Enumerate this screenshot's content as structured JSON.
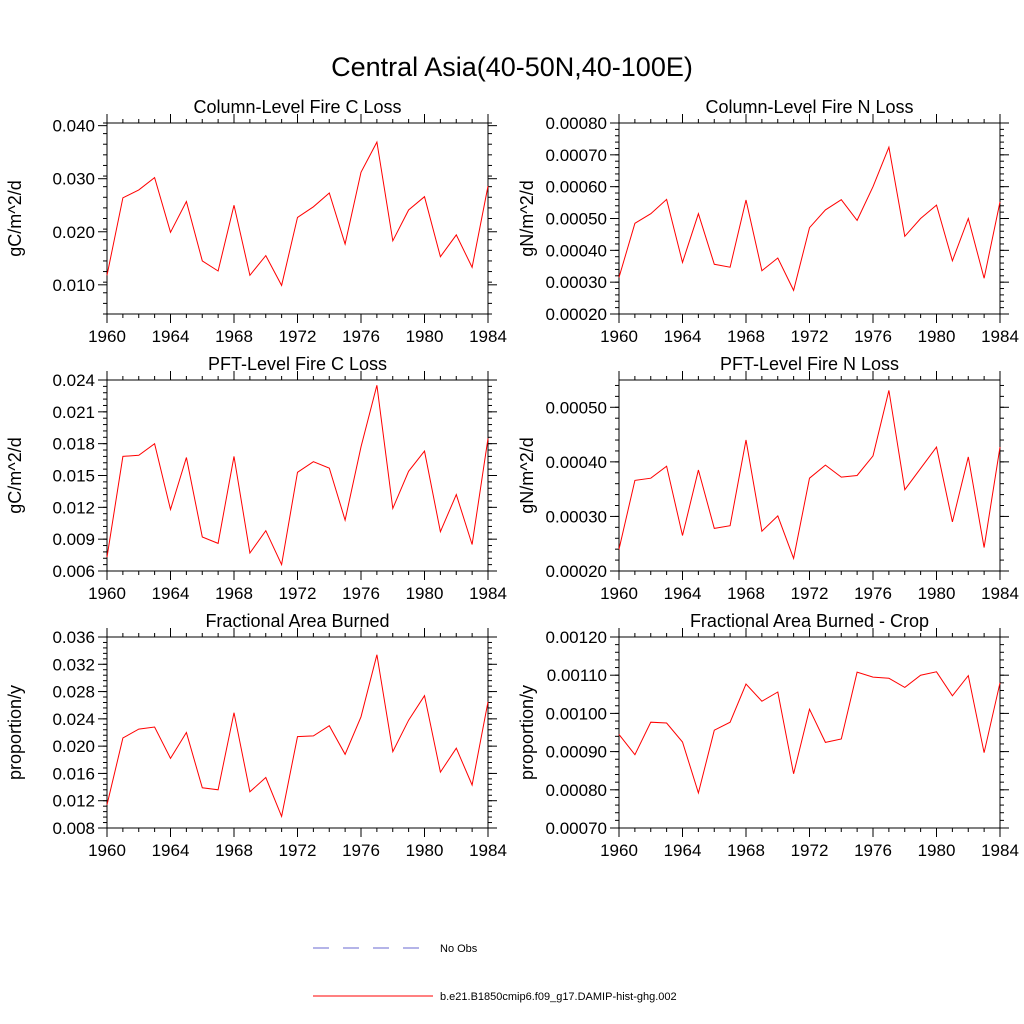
{
  "figure_title": "Central Asia(40-50N,40-100E)",
  "colors": {
    "model_line": "#ff0000",
    "obs_line": "#6a6ad0",
    "axes": "#000000"
  },
  "legend": [
    {
      "label": "No Obs",
      "style": "dashed",
      "color": "#6a6ad0"
    },
    {
      "label": "b.e21.B1850cmip6.f09_g17.DAMIP-hist-ghg.002",
      "style": "solid",
      "color": "#ff0000"
    }
  ],
  "chart_data": [
    {
      "type": "line",
      "title": "Column-Level Fire C Loss",
      "ylabel": "gC/m^2/d",
      "xlim": [
        1960,
        1984
      ],
      "ylim": [
        0.0045,
        0.0405
      ],
      "xticks": [
        1960,
        1964,
        1968,
        1972,
        1976,
        1980,
        1984
      ],
      "xtick_labels": [
        "1960",
        "1964",
        "1968",
        "1972",
        "1976",
        "1980",
        "1984"
      ],
      "yticks": [
        0.01,
        0.02,
        0.03,
        0.04
      ],
      "ytick_labels": [
        "0.010",
        "0.020",
        "0.030",
        "0.040"
      ],
      "yminor": 0.002,
      "x": [
        1960,
        1961,
        1962,
        1963,
        1964,
        1965,
        1966,
        1967,
        1968,
        1969,
        1970,
        1971,
        1972,
        1973,
        1974,
        1975,
        1976,
        1977,
        1978,
        1979,
        1980,
        1981,
        1982,
        1983,
        1984
      ],
      "series": [
        {
          "name": "b.e21.B1850cmip6.f09_g17.DAMIP-hist-ghg.002",
          "values": [
            0.0118,
            0.0264,
            0.0279,
            0.0302,
            0.0199,
            0.0257,
            0.0145,
            0.0126,
            0.025,
            0.0118,
            0.0155,
            0.0099,
            0.0227,
            0.0247,
            0.0273,
            0.0177,
            0.0312,
            0.0369,
            0.0183,
            0.0241,
            0.0266,
            0.0153,
            0.0194,
            0.0133,
            0.0286
          ]
        }
      ]
    },
    {
      "type": "line",
      "title": "Column-Level Fire N Loss",
      "ylabel": "gN/m^2/d",
      "xlim": [
        1960,
        1984
      ],
      "ylim": [
        0.0002,
        0.0008
      ],
      "xticks": [
        1960,
        1964,
        1968,
        1972,
        1976,
        1980,
        1984
      ],
      "xtick_labels": [
        "1960",
        "1964",
        "1968",
        "1972",
        "1976",
        "1980",
        "1984"
      ],
      "yticks": [
        0.0002,
        0.0003,
        0.0004,
        0.0005,
        0.0006,
        0.0007,
        0.0008
      ],
      "ytick_labels": [
        "0.00020",
        "0.00030",
        "0.00040",
        "0.00050",
        "0.00060",
        "0.00070",
        "0.00080"
      ],
      "yminor": 2e-05,
      "x": [
        1960,
        1961,
        1962,
        1963,
        1964,
        1965,
        1966,
        1967,
        1968,
        1969,
        1970,
        1971,
        1972,
        1973,
        1974,
        1975,
        1976,
        1977,
        1978,
        1979,
        1980,
        1981,
        1982,
        1983,
        1984
      ],
      "series": [
        {
          "name": "b.e21.B1850cmip6.f09_g17.DAMIP-hist-ghg.002",
          "values": [
            0.000315,
            0.000485,
            0.000515,
            0.00056,
            0.000362,
            0.000515,
            0.000356,
            0.000347,
            0.000558,
            0.000336,
            0.000376,
            0.000274,
            0.000471,
            0.000527,
            0.000559,
            0.000494,
            0.0006,
            0.000724,
            0.000444,
            0.0005,
            0.000542,
            0.000367,
            0.0005,
            0.000312,
            0.000552
          ]
        }
      ]
    },
    {
      "type": "line",
      "title": "PFT-Level Fire C Loss",
      "ylabel": "gC/m^2/d",
      "xlim": [
        1960,
        1984
      ],
      "ylim": [
        0.006,
        0.024
      ],
      "xticks": [
        1960,
        1964,
        1968,
        1972,
        1976,
        1980,
        1984
      ],
      "xtick_labels": [
        "1960",
        "1964",
        "1968",
        "1972",
        "1976",
        "1980",
        "1984"
      ],
      "yticks": [
        0.006,
        0.009,
        0.012,
        0.015,
        0.018,
        0.021,
        0.024
      ],
      "ytick_labels": [
        "0.006",
        "0.009",
        "0.012",
        "0.015",
        "0.018",
        "0.021",
        "0.024"
      ],
      "yminor": 0.0006,
      "x": [
        1960,
        1961,
        1962,
        1963,
        1964,
        1965,
        1966,
        1967,
        1968,
        1969,
        1970,
        1971,
        1972,
        1973,
        1974,
        1975,
        1976,
        1977,
        1978,
        1979,
        1980,
        1981,
        1982,
        1983,
        1984
      ],
      "series": [
        {
          "name": "b.e21.B1850cmip6.f09_g17.DAMIP-hist-ghg.002",
          "values": [
            0.0073,
            0.0168,
            0.0169,
            0.018,
            0.0118,
            0.0167,
            0.0092,
            0.0086,
            0.0168,
            0.0077,
            0.0098,
            0.0066,
            0.0153,
            0.0163,
            0.0157,
            0.0108,
            0.0177,
            0.0235,
            0.0119,
            0.0154,
            0.0173,
            0.0097,
            0.0132,
            0.0085,
            0.0185
          ]
        }
      ]
    },
    {
      "type": "line",
      "title": "PFT-Level Fire N Loss",
      "ylabel": "gN/m^2/d",
      "xlim": [
        1960,
        1984
      ],
      "ylim": [
        0.0002,
        0.00055
      ],
      "xticks": [
        1960,
        1964,
        1968,
        1972,
        1976,
        1980,
        1984
      ],
      "xtick_labels": [
        "1960",
        "1964",
        "1968",
        "1972",
        "1976",
        "1980",
        "1984"
      ],
      "yticks": [
        0.0002,
        0.0003,
        0.0004,
        0.0005
      ],
      "ytick_labels": [
        "0.00020",
        "0.00030",
        "0.00040",
        "0.00050"
      ],
      "yminor": 2e-05,
      "x": [
        1960,
        1961,
        1962,
        1963,
        1964,
        1965,
        1966,
        1967,
        1968,
        1969,
        1970,
        1971,
        1972,
        1973,
        1974,
        1975,
        1976,
        1977,
        1978,
        1979,
        1980,
        1981,
        1982,
        1983,
        1984
      ],
      "series": [
        {
          "name": "b.e21.B1850cmip6.f09_g17.DAMIP-hist-ghg.002",
          "values": [
            0.00024,
            0.000366,
            0.00037,
            0.000392,
            0.000265,
            0.000385,
            0.000278,
            0.000283,
            0.00044,
            0.000273,
            0.000301,
            0.000223,
            0.00037,
            0.000394,
            0.000372,
            0.000375,
            0.000411,
            0.000531,
            0.000349,
            0.000388,
            0.000427,
            0.00029,
            0.000409,
            0.000243,
            0.000427
          ]
        }
      ]
    },
    {
      "type": "line",
      "title": "Fractional Area Burned",
      "ylabel": "proportion/y",
      "xlim": [
        1960,
        1984
      ],
      "ylim": [
        0.008,
        0.036
      ],
      "xticks": [
        1960,
        1964,
        1968,
        1972,
        1976,
        1980,
        1984
      ],
      "xtick_labels": [
        "1960",
        "1964",
        "1968",
        "1972",
        "1976",
        "1980",
        "1984"
      ],
      "yticks": [
        0.008,
        0.012,
        0.016,
        0.02,
        0.024,
        0.028,
        0.032,
        0.036
      ],
      "ytick_labels": [
        "0.008",
        "0.012",
        "0.016",
        "0.020",
        "0.024",
        "0.028",
        "0.032",
        "0.036"
      ],
      "yminor": 0.0008,
      "x": [
        1960,
        1961,
        1962,
        1963,
        1964,
        1965,
        1966,
        1967,
        1968,
        1969,
        1970,
        1971,
        1972,
        1973,
        1974,
        1975,
        1976,
        1977,
        1978,
        1979,
        1980,
        1981,
        1982,
        1983,
        1984
      ],
      "series": [
        {
          "name": "b.e21.B1850cmip6.f09_g17.DAMIP-hist-ghg.002",
          "values": [
            0.0114,
            0.0212,
            0.0225,
            0.0228,
            0.0182,
            0.022,
            0.0139,
            0.0136,
            0.0249,
            0.0133,
            0.0154,
            0.0097,
            0.0214,
            0.0215,
            0.023,
            0.0188,
            0.0243,
            0.0334,
            0.0192,
            0.0238,
            0.0274,
            0.0162,
            0.0197,
            0.0143,
            0.0265
          ]
        }
      ]
    },
    {
      "type": "line",
      "title": "Fractional Area Burned - Crop",
      "ylabel": "proportion/y",
      "xlim": [
        1960,
        1984
      ],
      "ylim": [
        0.0007,
        0.0012
      ],
      "xticks": [
        1960,
        1964,
        1968,
        1972,
        1976,
        1980,
        1984
      ],
      "xtick_labels": [
        "1960",
        "1964",
        "1968",
        "1972",
        "1976",
        "1980",
        "1984"
      ],
      "yticks": [
        0.0007,
        0.0008,
        0.0009,
        0.001,
        0.0011,
        0.0012
      ],
      "ytick_labels": [
        "0.00070",
        "0.00080",
        "0.00090",
        "0.00100",
        "0.00110",
        "0.00120"
      ],
      "yminor": 2e-05,
      "x": [
        1960,
        1961,
        1962,
        1963,
        1964,
        1965,
        1966,
        1967,
        1968,
        1969,
        1970,
        1971,
        1972,
        1973,
        1974,
        1975,
        1976,
        1977,
        1978,
        1979,
        1980,
        1981,
        1982,
        1983,
        1984
      ],
      "series": [
        {
          "name": "b.e21.B1850cmip6.f09_g17.DAMIP-hist-ghg.002",
          "values": [
            0.000945,
            0.000892,
            0.000977,
            0.000975,
            0.000925,
            0.000792,
            0.000956,
            0.000977,
            0.001077,
            0.001032,
            0.001056,
            0.000842,
            0.001011,
            0.000924,
            0.000933,
            0.001108,
            0.001095,
            0.001092,
            0.001068,
            0.0011,
            0.001109,
            0.001046,
            0.001099,
            0.000897,
            0.00108
          ]
        }
      ]
    }
  ]
}
